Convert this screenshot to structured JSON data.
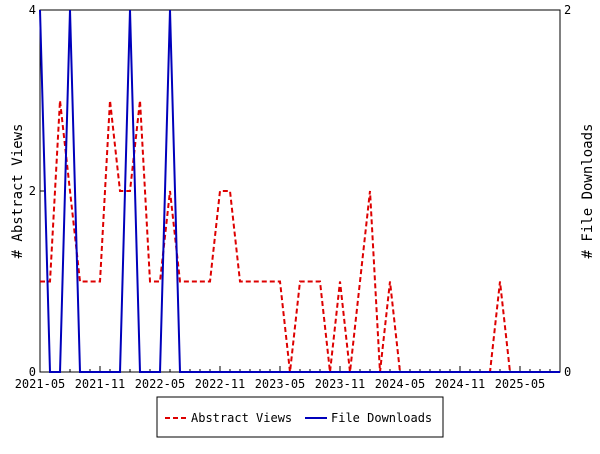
{
  "chart_data": {
    "type": "line",
    "title": "",
    "xlabel": "",
    "ylabel": "# Abstract Views",
    "y2label": "# File Downloads",
    "ylim": [
      0,
      4
    ],
    "y2lim": [
      0,
      2
    ],
    "yticks": [
      "0",
      "2",
      "4"
    ],
    "y2ticks": [
      "0",
      "2"
    ],
    "x_start": "2021-05",
    "x_tick_labels": [
      "2021-05",
      "2021-11",
      "2022-05",
      "2022-11",
      "2023-05",
      "2023-11",
      "2024-05",
      "2024-11",
      "2025-05"
    ],
    "legend_position": "bottom",
    "series": [
      {
        "name": "Abstract Views",
        "axis": "left",
        "color": "#dd0000",
        "style": "dashed",
        "values": [
          1,
          1,
          3,
          2,
          1,
          1,
          1,
          3,
          2,
          2,
          3,
          1,
          1,
          2,
          1,
          1,
          1,
          1,
          2,
          2,
          1,
          1,
          1,
          1,
          1,
          0,
          1,
          1,
          1,
          0,
          1,
          0,
          1,
          2,
          0,
          1,
          0,
          0,
          0,
          0,
          0,
          0,
          0,
          0,
          0,
          0,
          1,
          0,
          0,
          0,
          0,
          0,
          0
        ]
      },
      {
        "name": "File Downloads",
        "axis": "right",
        "color": "#0000bb",
        "style": "solid",
        "values": [
          2,
          0,
          0,
          2,
          0,
          0,
          0,
          0,
          0,
          2,
          0,
          0,
          0,
          2,
          0,
          0,
          0,
          0,
          0,
          0,
          0,
          0,
          0,
          0,
          0,
          0,
          0,
          0,
          0,
          0,
          0,
          0,
          0,
          0,
          0,
          0,
          0,
          0,
          0,
          0,
          0,
          0,
          0,
          0,
          0,
          0,
          0,
          0,
          0,
          0,
          0,
          0,
          0
        ]
      }
    ]
  }
}
